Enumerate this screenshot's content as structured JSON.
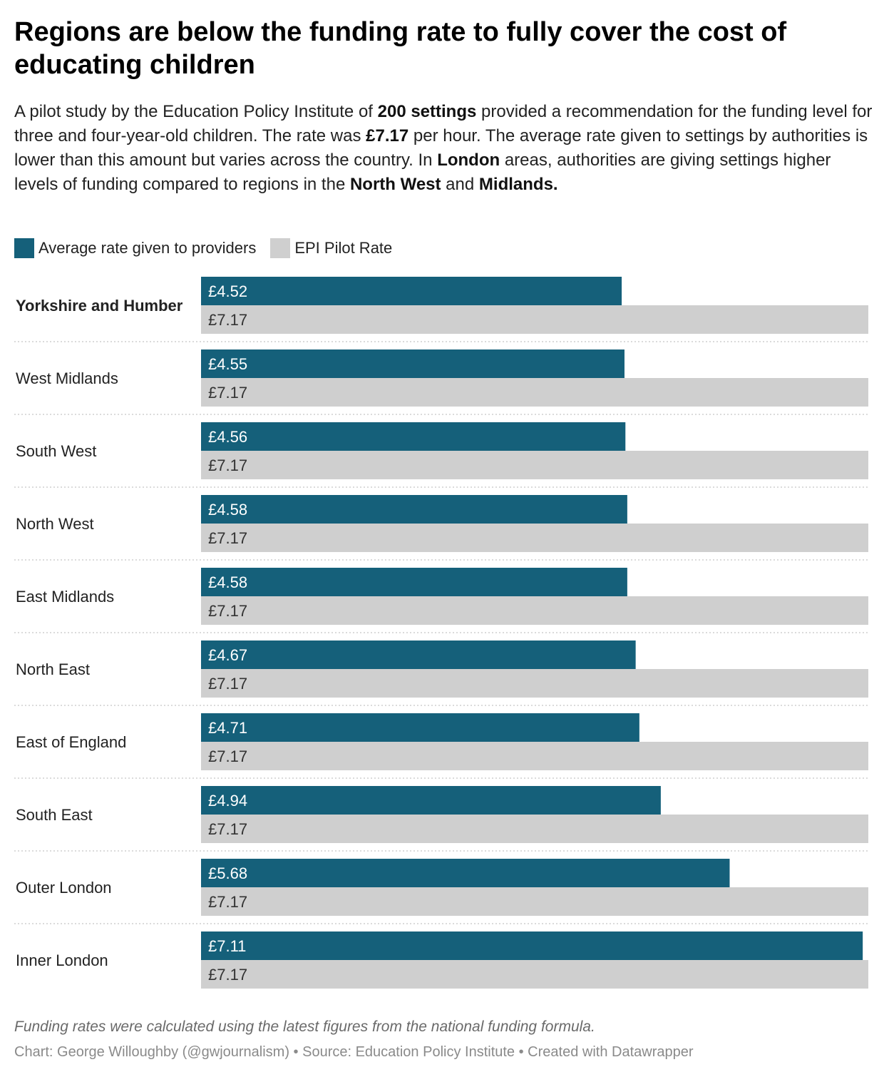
{
  "title": "Regions are below the funding rate to fully cover the cost of educating children",
  "subtitle": {
    "parts": [
      {
        "text": "A pilot study by the Education Policy Institute of ",
        "bold": false
      },
      {
        "text": "200 settings",
        "bold": true
      },
      {
        "text": " provided a recommendation for the funding level for three and four-year-old children. The rate was ",
        "bold": false
      },
      {
        "text": "£7.17",
        "bold": true
      },
      {
        "text": " per hour. The average rate given to settings by authorities is lower than this amount but varies across the country. In ",
        "bold": false
      },
      {
        "text": "London",
        "bold": true
      },
      {
        "text": " areas, authorities are giving settings higher levels of funding compared to regions in the ",
        "bold": false
      },
      {
        "text": "North West",
        "bold": true
      },
      {
        "text": " and ",
        "bold": false
      },
      {
        "text": "Midlands.",
        "bold": true
      }
    ]
  },
  "legend": [
    {
      "label": "Average rate given to providers",
      "color": "#15607a"
    },
    {
      "label": "EPI Pilot Rate",
      "color": "#cfcfcf"
    }
  ],
  "chart_data": {
    "type": "bar",
    "orientation": "horizontal",
    "categories": [
      "Yorkshire and Humber",
      "West Midlands",
      "South West",
      "North West",
      "East Midlands",
      "North East",
      "East of England",
      "South East",
      "Outer London",
      "Inner London"
    ],
    "highlighted_category": "Yorkshire and Humber",
    "series": [
      {
        "name": "Average rate given to providers",
        "color": "#15607a",
        "label_color": "#ffffff",
        "values": [
          4.52,
          4.55,
          4.56,
          4.58,
          4.58,
          4.67,
          4.71,
          4.94,
          5.68,
          7.11
        ]
      },
      {
        "name": "EPI Pilot Rate",
        "color": "#cfcfcf",
        "label_color": "#333333",
        "values": [
          7.17,
          7.17,
          7.17,
          7.17,
          7.17,
          7.17,
          7.17,
          7.17,
          7.17,
          7.17
        ]
      }
    ],
    "value_prefix": "£",
    "xlim": [
      0,
      7.17
    ],
    "grid": false,
    "legend_position": "top-left"
  },
  "footnote": "Funding rates were calculated using the latest figures from the national funding formula.",
  "credits": "Chart: George Willoughby (@gwjournalism) • Source: Education Policy Institute • Created with Datawrapper"
}
